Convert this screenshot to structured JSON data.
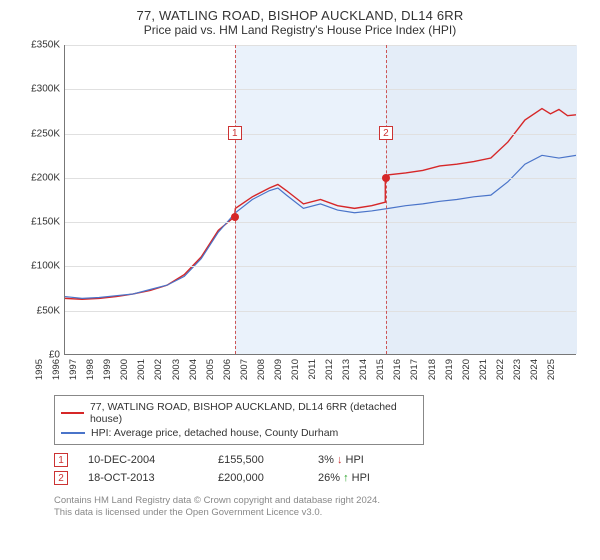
{
  "header": {
    "address": "77, WATLING ROAD, BISHOP AUCKLAND, DL14 6RR",
    "subtitle": "Price paid vs. HM Land Registry's House Price Index (HPI)"
  },
  "chart": {
    "type": "line",
    "ylim": [
      0,
      350000
    ],
    "ytick_step": 50000,
    "yticks": [
      "£0",
      "£50K",
      "£100K",
      "£150K",
      "£200K",
      "£250K",
      "£300K",
      "£350K"
    ],
    "xlim": [
      1995,
      2025
    ],
    "xticks": [
      1995,
      1996,
      1997,
      1998,
      1999,
      2000,
      2001,
      2002,
      2003,
      2004,
      2005,
      2006,
      2007,
      2008,
      2009,
      2010,
      2011,
      2012,
      2013,
      2014,
      2015,
      2016,
      2017,
      2018,
      2019,
      2020,
      2021,
      2022,
      2023,
      2024,
      2025
    ],
    "grid_color": "#e0e0e0",
    "background_color": "#ffffff",
    "shaded_region_color": "#eaf2fb",
    "series": [
      {
        "name": "red",
        "label": "77, WATLING ROAD, BISHOP AUCKLAND, DL14 6RR (detached house)",
        "color": "#d62728",
        "line_width": 1.4,
        "points": [
          [
            1995,
            63000
          ],
          [
            1996,
            62000
          ],
          [
            1997,
            63000
          ],
          [
            1998,
            65000
          ],
          [
            1999,
            68000
          ],
          [
            2000,
            72000
          ],
          [
            2001,
            78000
          ],
          [
            2002,
            90000
          ],
          [
            2003,
            110000
          ],
          [
            2004,
            140000
          ],
          [
            2004.95,
            155500
          ],
          [
            2005,
            165000
          ],
          [
            2006,
            178000
          ],
          [
            2007,
            188000
          ],
          [
            2007.5,
            192000
          ],
          [
            2008,
            185000
          ],
          [
            2009,
            170000
          ],
          [
            2010,
            175000
          ],
          [
            2011,
            168000
          ],
          [
            2012,
            165000
          ],
          [
            2013,
            168000
          ],
          [
            2013.8,
            172000
          ],
          [
            2013.8,
            200000
          ],
          [
            2014,
            203000
          ],
          [
            2015,
            205000
          ],
          [
            2016,
            208000
          ],
          [
            2017,
            213000
          ],
          [
            2018,
            215000
          ],
          [
            2019,
            218000
          ],
          [
            2020,
            222000
          ],
          [
            2021,
            240000
          ],
          [
            2022,
            265000
          ],
          [
            2023,
            278000
          ],
          [
            2023.5,
            272000
          ],
          [
            2024,
            277000
          ],
          [
            2024.5,
            270000
          ],
          [
            2025,
            271000
          ]
        ]
      },
      {
        "name": "blue",
        "label": "HPI: Average price, detached house, County Durham",
        "color": "#4a74c9",
        "line_width": 1.2,
        "points": [
          [
            1995,
            65000
          ],
          [
            1996,
            63000
          ],
          [
            1997,
            64000
          ],
          [
            1998,
            66000
          ],
          [
            1999,
            68000
          ],
          [
            2000,
            73000
          ],
          [
            2001,
            78000
          ],
          [
            2002,
            88000
          ],
          [
            2003,
            108000
          ],
          [
            2004,
            138000
          ],
          [
            2005,
            160000
          ],
          [
            2006,
            175000
          ],
          [
            2007,
            185000
          ],
          [
            2007.5,
            188000
          ],
          [
            2008,
            180000
          ],
          [
            2009,
            165000
          ],
          [
            2010,
            170000
          ],
          [
            2011,
            163000
          ],
          [
            2012,
            160000
          ],
          [
            2013,
            162000
          ],
          [
            2014,
            165000
          ],
          [
            2015,
            168000
          ],
          [
            2016,
            170000
          ],
          [
            2017,
            173000
          ],
          [
            2018,
            175000
          ],
          [
            2019,
            178000
          ],
          [
            2020,
            180000
          ],
          [
            2021,
            195000
          ],
          [
            2022,
            215000
          ],
          [
            2023,
            225000
          ],
          [
            2024,
            222000
          ],
          [
            2025,
            225000
          ]
        ]
      }
    ],
    "sales_markers": [
      {
        "n": "1",
        "year": 2004.95,
        "price": 155500,
        "box_y": 72000
      },
      {
        "n": "2",
        "year": 2013.8,
        "price": 200000,
        "box_y": 72000
      }
    ]
  },
  "legend": {
    "red": "77, WATLING ROAD, BISHOP AUCKLAND, DL14 6RR (detached house)",
    "blue": "HPI: Average price, detached house, County Durham"
  },
  "sales": [
    {
      "n": "1",
      "date": "10-DEC-2004",
      "price": "£155,500",
      "pct": "3%",
      "dir": "down",
      "arrow": "↓",
      "suffix": "HPI"
    },
    {
      "n": "2",
      "date": "18-OCT-2013",
      "price": "£200,000",
      "pct": "26%",
      "dir": "up",
      "arrow": "↑",
      "suffix": "HPI"
    }
  ],
  "attribution": {
    "line1": "Contains HM Land Registry data © Crown copyright and database right 2024.",
    "line2": "This data is licensed under the Open Government Licence v3.0."
  }
}
